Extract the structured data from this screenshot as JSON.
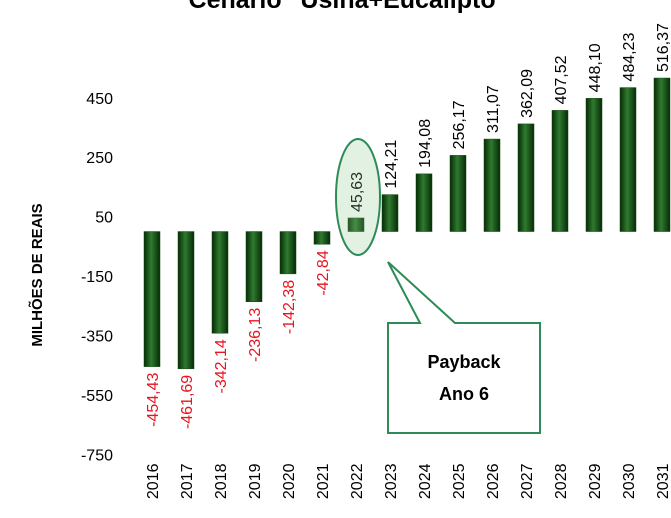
{
  "chart_data": {
    "type": "bar",
    "title": "Cenário \"Usina+Eucalipto\"",
    "y_axis_label": "MILHÕES DE REAIS",
    "categories": [
      "2016",
      "2017",
      "2018",
      "2019",
      "2020",
      "2021",
      "2022",
      "2023",
      "2024",
      "2025",
      "2026",
      "2027",
      "2028",
      "2029",
      "2030",
      "2031"
    ],
    "values": [
      -454.43,
      -461.69,
      -342.14,
      -236.13,
      -142.38,
      -42.84,
      45.63,
      124.21,
      194.08,
      256.17,
      311.07,
      362.09,
      407.52,
      448.1,
      484.23,
      516.37
    ],
    "value_labels": [
      "-454,43",
      "-461,69",
      "-342,14",
      "-236,13",
      "-142,38",
      "-42,84",
      "45,63",
      "124,21",
      "194,08",
      "256,17",
      "311,07",
      "362,09",
      "407,52",
      "448,10",
      "484,23",
      "516,37"
    ],
    "color": "#0f4d0f",
    "negative_label_color": "#e8141e",
    "ylim": [
      -750,
      650
    ],
    "yticks": [
      450,
      250,
      50,
      -150,
      -350,
      -550,
      -750
    ],
    "annotation": [
      "Payback",
      "Ano 6"
    ]
  }
}
